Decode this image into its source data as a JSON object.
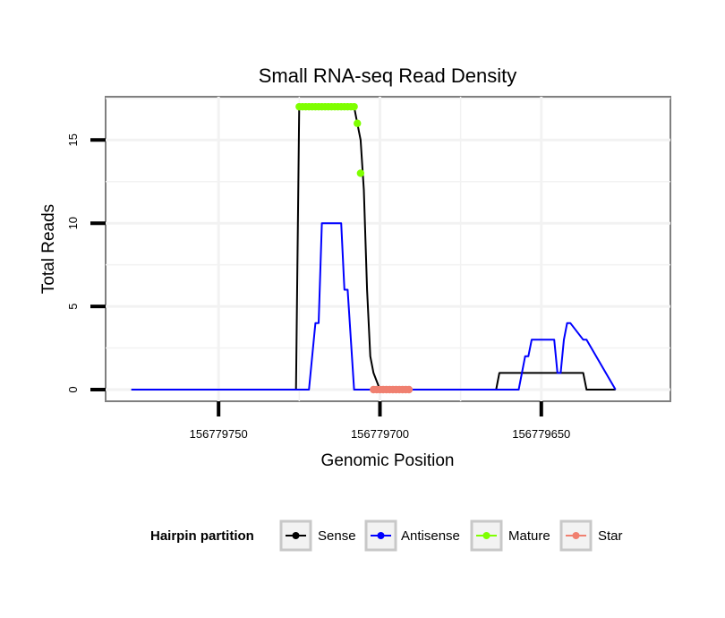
{
  "chart_data": {
    "type": "line",
    "title": "Small RNA-seq Read Density",
    "xlabel": "Genomic Position",
    "ylabel": "Total Reads",
    "xlim": [
      156779785,
      156779610
    ],
    "ylim": [
      -0.7,
      17.6
    ],
    "x_reversed": true,
    "x_ticks": [
      156779750,
      156779700,
      156779650
    ],
    "x_tick_labels": [
      "156779750",
      "156779700",
      "156779650"
    ],
    "y_ticks": [
      0,
      5,
      10,
      15
    ],
    "y_tick_labels": [
      "0",
      "5",
      "10",
      "15"
    ],
    "grid": true,
    "series": [
      {
        "name": "Sense",
        "color": "#000000",
        "kind": "line",
        "x": [
          156779777,
          156779726,
          156779725,
          156779708,
          156779707,
          156779706,
          156779705,
          156779704,
          156779703,
          156779702,
          156779700,
          156779664,
          156779663,
          156779654,
          156779651,
          156779649,
          156779645,
          156779637,
          156779636,
          156779627
        ],
        "y": [
          0,
          0,
          17,
          17,
          16,
          15,
          12,
          6,
          2,
          1,
          0,
          0,
          1,
          1,
          1,
          1,
          1,
          1,
          0,
          0
        ]
      },
      {
        "name": "Antisense",
        "color": "#0000ff",
        "kind": "line",
        "x": [
          156779777,
          156779722,
          156779721,
          156779720,
          156779719,
          156779718,
          156779712,
          156779711,
          156779710,
          156779709,
          156779708,
          156779657,
          156779656,
          156779655,
          156779654,
          156779653,
          156779646,
          156779645,
          156779644,
          156779643,
          156779642,
          156779641,
          156779637,
          156779636,
          156779627
        ],
        "y": [
          0,
          0,
          2,
          4,
          4,
          10,
          10,
          6,
          6,
          3,
          0,
          0,
          1,
          2,
          2,
          3,
          3,
          1,
          1,
          3,
          4,
          4,
          3,
          3,
          0
        ]
      },
      {
        "name": "Mature",
        "color": "#7fff00",
        "kind": "points",
        "x": [
          156779725,
          156779724,
          156779723,
          156779722,
          156779721,
          156779720,
          156779719,
          156779718,
          156779717,
          156779716,
          156779715,
          156779714,
          156779713,
          156779712,
          156779711,
          156779710,
          156779709,
          156779708,
          156779707,
          156779706
        ],
        "y": [
          17,
          17,
          17,
          17,
          17,
          17,
          17,
          17,
          17,
          17,
          17,
          17,
          17,
          17,
          17,
          17,
          17,
          17,
          16,
          13
        ]
      },
      {
        "name": "Star",
        "color": "#f08070",
        "kind": "points",
        "x": [
          156779702,
          156779701,
          156779700,
          156779699,
          156779698,
          156779697,
          156779696,
          156779695,
          156779694,
          156779693,
          156779692,
          156779691
        ],
        "y": [
          0,
          0,
          0,
          0,
          0,
          0,
          0,
          0,
          0,
          0,
          0,
          0
        ]
      }
    ],
    "legend": {
      "title": "Hairpin partition",
      "placement": "bottom",
      "entries": [
        "Sense",
        "Antisense",
        "Mature",
        "Star"
      ]
    }
  }
}
